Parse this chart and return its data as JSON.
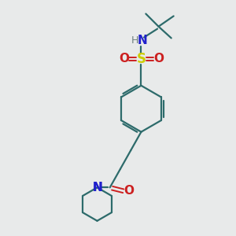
{
  "bg_color": "#e8eaea",
  "bond_color": "#2d6b6b",
  "n_color": "#2020cc",
  "o_color": "#cc2020",
  "s_color": "#cccc00",
  "line_width": 1.6,
  "fig_size": [
    3.0,
    3.0
  ],
  "dpi": 100,
  "xlim": [
    0,
    10
  ],
  "ylim": [
    0,
    10
  ]
}
